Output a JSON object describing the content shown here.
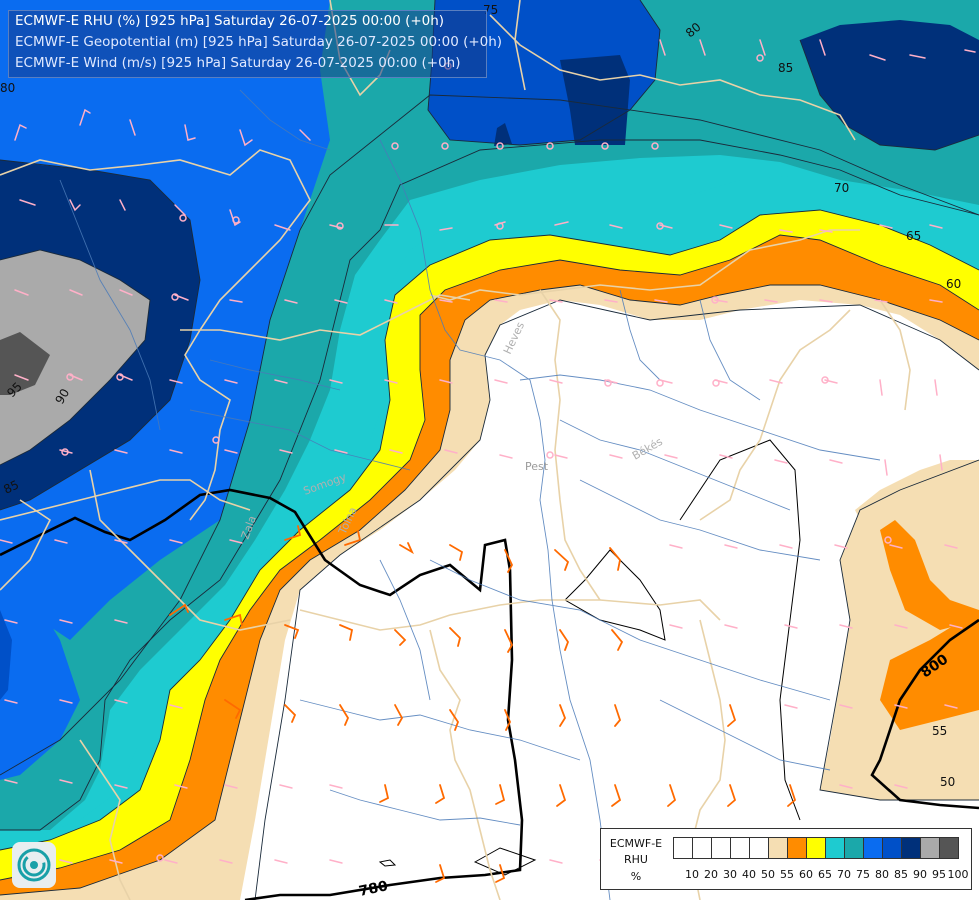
{
  "titles": {
    "line1": "ECMWF-E RHU (%) [925 hPa] Saturday 26-07-2025 00:00 (+0h)",
    "line2": "ECMWF-E Geopotential (m) [925 hPa] Saturday 26-07-2025 00:00 (+0h)",
    "line3": "ECMWF-E Wind (m/s) [925 hPa] Saturday 26-07-2025 00:00 (+0h)"
  },
  "legend": {
    "line1": "ECMWF-E",
    "line2": "RHU",
    "line3": "%",
    "ticks": [
      "10",
      "20",
      "30",
      "40",
      "50",
      "55",
      "60",
      "65",
      "70",
      "75",
      "80",
      "85",
      "90",
      "95",
      "100"
    ],
    "colors": [
      "#ffffff",
      "#ffffff",
      "#ffffff",
      "#ffffff",
      "#ffffff",
      "#f5deb3",
      "#ff8c00",
      "#ffff00",
      "#1ecbd0",
      "#1ba8aa",
      "#0a6cf0",
      "#0050c8",
      "#00307a",
      "#aaaaaa",
      "#555555"
    ]
  },
  "contour_labels": {
    "rh": [
      "75",
      "80",
      "85",
      "70",
      "65",
      "60",
      "90",
      "95",
      "85",
      "55",
      "50"
    ],
    "geo": [
      "800",
      "780"
    ]
  },
  "place_labels": [
    "Heves",
    "Pest",
    "Békés",
    "Zala",
    "Tolna",
    "Somogy"
  ],
  "colors": {
    "rh50": "#ffffff",
    "rh55": "#f5deb3",
    "rh60": "#ff8c00",
    "rh65": "#ffff00",
    "rh70": "#1ecbd0",
    "rh75": "#1ba8aa",
    "rh80": "#0a6cf0",
    "rh85": "#0050c8",
    "rh90": "#00307a",
    "rh95": "#aaaaaa",
    "rh100": "#555555",
    "wind_strong": "#ff6a00",
    "wind_weak": "#ffb0c8",
    "border": "#e8d2a8",
    "river": "#4a7ab8"
  },
  "icons": {
    "logo": "ecmwf-logo-icon"
  }
}
